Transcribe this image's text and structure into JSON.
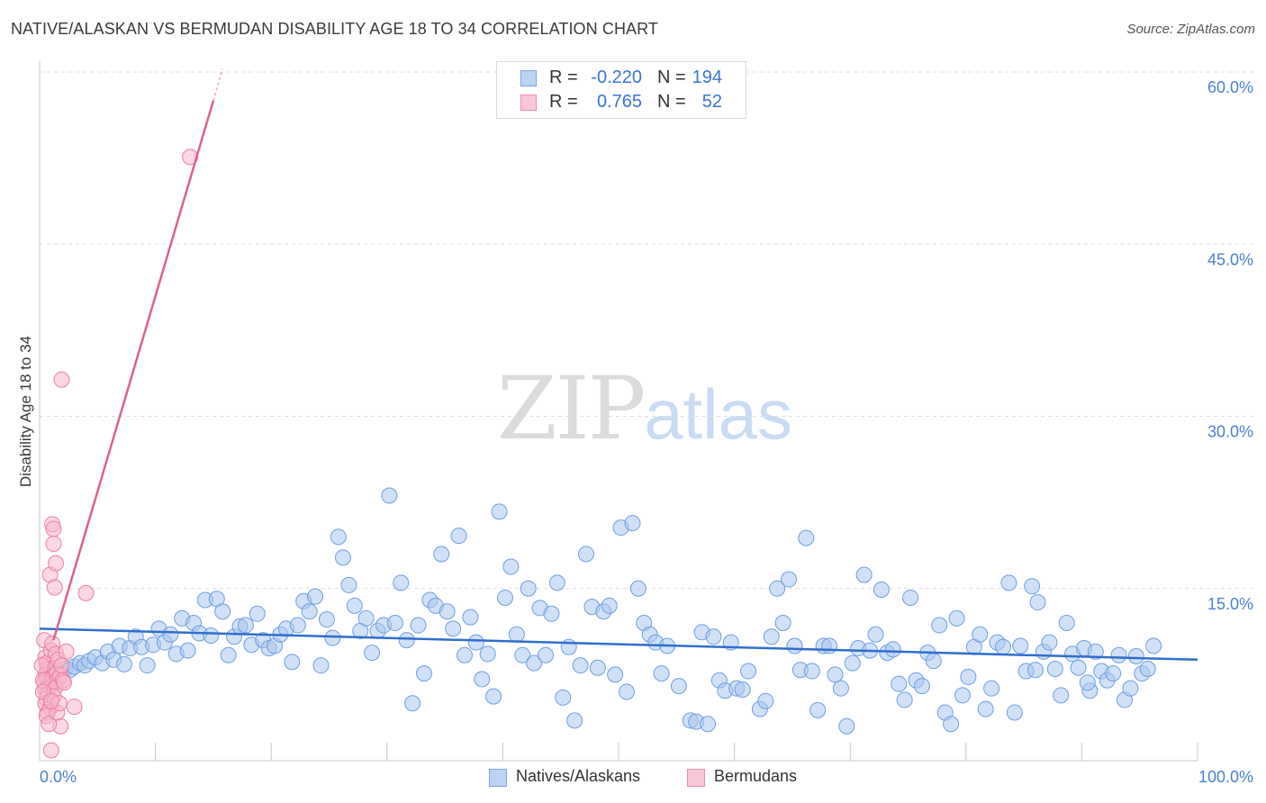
{
  "title": "NATIVE/ALASKAN VS BERMUDAN DISABILITY AGE 18 TO 34 CORRELATION CHART",
  "source": "Source: ZipAtlas.com",
  "watermark": {
    "zip": "ZIP",
    "atlas": "atlas"
  },
  "colors": {
    "blue_fill": "#a9c8f0",
    "blue_stroke": "#6e9fe0",
    "blue_line": "#2e6fcc",
    "pink_fill": "#f7b8cc",
    "pink_stroke": "#ea7fa3",
    "pink_line": "#e0608e",
    "axis_text": "#4a7fd4",
    "grid": "#dedede"
  },
  "legend": [
    {
      "r_label": "R =",
      "r_value": "-0.220",
      "n_label": "N =",
      "n_value": "194",
      "color": "blue"
    },
    {
      "r_label": "R =",
      "r_value": "0.765",
      "n_label": "N =",
      "n_value": "52",
      "color": "pink"
    }
  ],
  "bottom_legend": [
    {
      "label": "Natives/Alaskans",
      "color": "blue"
    },
    {
      "label": "Bermudans",
      "color": "pink"
    }
  ],
  "chart_data": {
    "type": "scatter",
    "title": "NATIVE/ALASKAN VS BERMUDAN DISABILITY AGE 18 TO 34 CORRELATION CHART",
    "xlabel": "",
    "ylabel": "Disability Age 18 to 34",
    "xlim": [
      0,
      100
    ],
    "ylim": [
      0,
      60
    ],
    "x_tick_labels": [
      "0.0%",
      "100.0%"
    ],
    "y_ticks": [
      15,
      30,
      45,
      60
    ],
    "y_tick_labels": [
      "15.0%",
      "30.0%",
      "45.0%",
      "60.0%"
    ],
    "grid": "horizontal dashed",
    "legend_position": "top-center",
    "series": [
      {
        "name": "Natives/Alaskans",
        "color": "blue",
        "trend": {
          "x": [
            0,
            100
          ],
          "y": [
            11.5,
            8.8
          ]
        },
        "points": [
          [
            0.6,
            7.2
          ],
          [
            0.9,
            7.6
          ],
          [
            1.2,
            7.0
          ],
          [
            1.5,
            7.8
          ],
          [
            1.8,
            7.4
          ],
          [
            2.2,
            8.0
          ],
          [
            2.6,
            7.9
          ],
          [
            3.0,
            8.2
          ],
          [
            3.5,
            8.5
          ],
          [
            3.9,
            8.3
          ],
          [
            4.3,
            8.7
          ],
          [
            4.8,
            9.0
          ],
          [
            5.4,
            8.5
          ],
          [
            5.9,
            9.5
          ],
          [
            6.4,
            8.8
          ],
          [
            6.9,
            10.0
          ],
          [
            7.3,
            8.4
          ],
          [
            7.8,
            9.8
          ],
          [
            8.3,
            10.8
          ],
          [
            8.8,
            9.9
          ],
          [
            9.3,
            8.3
          ],
          [
            9.8,
            10.1
          ],
          [
            10.3,
            11.5
          ],
          [
            10.8,
            10.3
          ],
          [
            11.3,
            11.0
          ],
          [
            11.8,
            9.3
          ],
          [
            12.3,
            12.4
          ],
          [
            12.8,
            9.6
          ],
          [
            13.3,
            12.0
          ],
          [
            13.8,
            11.1
          ],
          [
            14.3,
            14.0
          ],
          [
            14.8,
            10.9
          ],
          [
            15.3,
            14.1
          ],
          [
            15.8,
            13.0
          ],
          [
            16.3,
            9.2
          ],
          [
            16.8,
            10.8
          ],
          [
            17.3,
            11.7
          ],
          [
            17.8,
            11.8
          ],
          [
            18.3,
            10.1
          ],
          [
            18.8,
            12.8
          ],
          [
            19.3,
            10.5
          ],
          [
            19.8,
            9.8
          ],
          [
            20.3,
            10.0
          ],
          [
            20.8,
            11.0
          ],
          [
            21.3,
            11.5
          ],
          [
            21.8,
            8.6
          ],
          [
            22.3,
            11.8
          ],
          [
            22.8,
            13.9
          ],
          [
            23.3,
            13.0
          ],
          [
            23.8,
            14.3
          ],
          [
            24.3,
            8.3
          ],
          [
            24.8,
            12.3
          ],
          [
            25.3,
            10.7
          ],
          [
            25.8,
            19.5
          ],
          [
            26.2,
            17.7
          ],
          [
            26.7,
            15.3
          ],
          [
            27.2,
            13.5
          ],
          [
            27.7,
            11.3
          ],
          [
            28.2,
            12.4
          ],
          [
            28.7,
            9.4
          ],
          [
            29.2,
            11.3
          ],
          [
            29.7,
            11.8
          ],
          [
            30.2,
            23.1
          ],
          [
            30.7,
            12.0
          ],
          [
            31.2,
            15.5
          ],
          [
            31.7,
            10.5
          ],
          [
            32.2,
            5.0
          ],
          [
            32.7,
            11.8
          ],
          [
            33.2,
            7.6
          ],
          [
            33.7,
            14.0
          ],
          [
            34.2,
            13.5
          ],
          [
            34.7,
            18.0
          ],
          [
            35.2,
            13.0
          ],
          [
            35.7,
            11.5
          ],
          [
            36.2,
            19.6
          ],
          [
            36.7,
            9.2
          ],
          [
            37.2,
            12.5
          ],
          [
            37.7,
            10.3
          ],
          [
            38.2,
            7.1
          ],
          [
            38.7,
            9.3
          ],
          [
            39.2,
            5.6
          ],
          [
            39.7,
            21.7
          ],
          [
            40.2,
            14.2
          ],
          [
            40.7,
            16.9
          ],
          [
            41.2,
            11.0
          ],
          [
            41.7,
            9.2
          ],
          [
            42.2,
            15.0
          ],
          [
            42.7,
            8.5
          ],
          [
            43.2,
            13.3
          ],
          [
            43.7,
            9.2
          ],
          [
            44.2,
            12.8
          ],
          [
            44.7,
            15.5
          ],
          [
            45.2,
            5.5
          ],
          [
            45.7,
            9.9
          ],
          [
            46.2,
            3.5
          ],
          [
            46.7,
            8.3
          ],
          [
            47.2,
            18.0
          ],
          [
            47.7,
            13.4
          ],
          [
            48.2,
            8.1
          ],
          [
            48.7,
            13.0
          ],
          [
            49.2,
            13.5
          ],
          [
            49.7,
            7.5
          ],
          [
            50.2,
            20.3
          ],
          [
            50.7,
            6.0
          ],
          [
            51.2,
            20.7
          ],
          [
            51.7,
            15.0
          ],
          [
            52.2,
            12.0
          ],
          [
            52.7,
            11.0
          ],
          [
            53.2,
            10.3
          ],
          [
            53.7,
            7.6
          ],
          [
            54.2,
            10.0
          ],
          [
            55.2,
            6.5
          ],
          [
            56.2,
            3.5
          ],
          [
            56.7,
            3.4
          ],
          [
            57.2,
            11.2
          ],
          [
            57.7,
            3.2
          ],
          [
            58.2,
            10.8
          ],
          [
            58.7,
            7.0
          ],
          [
            59.2,
            6.1
          ],
          [
            59.7,
            10.3
          ],
          [
            60.2,
            6.3
          ],
          [
            60.7,
            6.2
          ],
          [
            61.2,
            7.8
          ],
          [
            62.2,
            4.5
          ],
          [
            62.7,
            5.2
          ],
          [
            63.2,
            10.8
          ],
          [
            63.7,
            15.0
          ],
          [
            64.2,
            12.0
          ],
          [
            64.7,
            15.8
          ],
          [
            65.2,
            10.0
          ],
          [
            65.7,
            7.9
          ],
          [
            66.2,
            19.4
          ],
          [
            66.7,
            7.8
          ],
          [
            67.2,
            4.4
          ],
          [
            67.7,
            10.0
          ],
          [
            68.2,
            10.0
          ],
          [
            68.7,
            7.5
          ],
          [
            69.2,
            6.3
          ],
          [
            69.7,
            3.0
          ],
          [
            70.2,
            8.5
          ],
          [
            70.7,
            9.8
          ],
          [
            71.2,
            16.2
          ],
          [
            71.7,
            9.6
          ],
          [
            72.2,
            11.0
          ],
          [
            72.7,
            14.9
          ],
          [
            73.2,
            9.4
          ],
          [
            73.7,
            9.7
          ],
          [
            74.2,
            6.7
          ],
          [
            74.7,
            5.3
          ],
          [
            75.2,
            14.2
          ],
          [
            75.7,
            7.0
          ],
          [
            76.2,
            6.5
          ],
          [
            76.7,
            9.4
          ],
          [
            77.2,
            8.7
          ],
          [
            77.7,
            11.8
          ],
          [
            78.2,
            4.2
          ],
          [
            78.7,
            3.2
          ],
          [
            79.2,
            12.4
          ],
          [
            79.7,
            5.7
          ],
          [
            80.2,
            7.3
          ],
          [
            80.7,
            9.9
          ],
          [
            81.2,
            11.0
          ],
          [
            81.7,
            4.5
          ],
          [
            82.2,
            6.3
          ],
          [
            82.7,
            10.3
          ],
          [
            83.2,
            9.9
          ],
          [
            83.7,
            15.5
          ],
          [
            84.2,
            4.2
          ],
          [
            84.7,
            10.0
          ],
          [
            85.2,
            7.8
          ],
          [
            85.7,
            15.2
          ],
          [
            86.2,
            13.8
          ],
          [
            86.7,
            9.5
          ],
          [
            87.2,
            10.3
          ],
          [
            87.7,
            8.0
          ],
          [
            88.2,
            5.7
          ],
          [
            88.7,
            12.0
          ],
          [
            89.2,
            9.3
          ],
          [
            89.7,
            8.1
          ],
          [
            90.2,
            9.8
          ],
          [
            90.7,
            6.1
          ],
          [
            91.2,
            9.5
          ],
          [
            91.7,
            7.8
          ],
          [
            92.2,
            7.0
          ],
          [
            92.7,
            7.6
          ],
          [
            93.2,
            9.2
          ],
          [
            93.7,
            5.3
          ],
          [
            94.2,
            6.3
          ],
          [
            94.7,
            9.1
          ],
          [
            95.2,
            7.6
          ],
          [
            95.7,
            8.0
          ],
          [
            96.2,
            10.0
          ],
          [
            90.5,
            6.8
          ],
          [
            86.0,
            7.9
          ]
        ]
      },
      {
        "name": "Bermudans",
        "color": "pink",
        "trend": {
          "x": [
            1.2,
            15.0
          ],
          "y": [
            10.5,
            57.5
          ],
          "dashed_extension": {
            "x": [
              15.0,
              15.8
            ],
            "y": [
              57.5,
              60.3
            ]
          }
        },
        "points": [
          [
            0.4,
            10.5
          ],
          [
            0.5,
            9.0
          ],
          [
            0.6,
            8.5
          ],
          [
            0.7,
            8.0
          ],
          [
            0.5,
            7.5
          ],
          [
            0.6,
            7.2
          ],
          [
            0.4,
            6.8
          ],
          [
            0.8,
            6.5
          ],
          [
            0.5,
            6.2
          ],
          [
            0.7,
            5.8
          ],
          [
            0.6,
            5.4
          ],
          [
            0.5,
            5.0
          ],
          [
            0.9,
            4.6
          ],
          [
            0.7,
            4.2
          ],
          [
            0.6,
            3.9
          ],
          [
            1.0,
            7.0
          ],
          [
            1.1,
            6.7
          ],
          [
            1.2,
            7.3
          ],
          [
            1.3,
            8.1
          ],
          [
            1.4,
            6.9
          ],
          [
            1.5,
            7.6
          ],
          [
            1.6,
            7.1
          ],
          [
            1.3,
            6.3
          ],
          [
            1.2,
            5.6
          ],
          [
            1.0,
            9.6
          ],
          [
            1.1,
            10.2
          ],
          [
            1.4,
            9.3
          ],
          [
            1.6,
            8.8
          ],
          [
            1.8,
            7.4
          ],
          [
            2.0,
            7.0
          ],
          [
            0.9,
            16.2
          ],
          [
            1.1,
            20.6
          ],
          [
            1.2,
            20.2
          ],
          [
            1.2,
            18.9
          ],
          [
            1.4,
            17.2
          ],
          [
            1.3,
            15.1
          ],
          [
            1.9,
            33.2
          ],
          [
            2.3,
            9.5
          ],
          [
            3.0,
            4.7
          ],
          [
            4.0,
            14.6
          ],
          [
            1.8,
            3.0
          ],
          [
            1.0,
            0.9
          ],
          [
            0.8,
            3.2
          ],
          [
            1.5,
            4.2
          ],
          [
            1.7,
            5.0
          ],
          [
            2.1,
            6.8
          ],
          [
            0.3,
            7.0
          ],
          [
            0.2,
            8.3
          ],
          [
            0.3,
            6.0
          ],
          [
            1.9,
            8.3
          ],
          [
            13.0,
            52.6
          ],
          [
            1.0,
            5.2
          ]
        ]
      }
    ]
  }
}
